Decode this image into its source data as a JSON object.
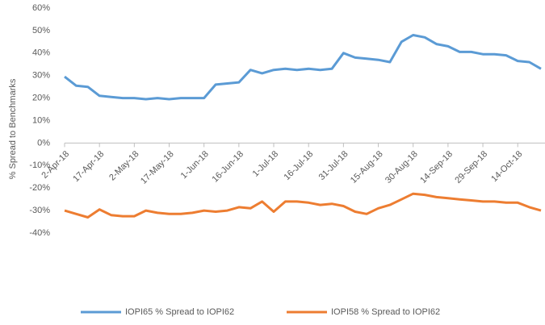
{
  "chart_data": {
    "type": "line",
    "y_label": "% Spread to Benchmarks",
    "categories": [
      "2-Apr-18",
      null,
      null,
      "17-Apr-18",
      null,
      null,
      "2-May-18",
      null,
      null,
      "17-May-18",
      null,
      null,
      "1-Jun-18",
      null,
      null,
      "16-Jun-18",
      null,
      null,
      "1-Jul-18",
      null,
      null,
      "16-Jul-18",
      null,
      null,
      "31-Jul-18",
      null,
      null,
      "15-Aug-18",
      null,
      null,
      "30-Aug-18",
      null,
      null,
      "14-Sep-18",
      null,
      null,
      "29-Sep-18",
      null,
      null,
      "14-Oct-18",
      null,
      null
    ],
    "series": [
      {
        "name": "IOPI65 % Spread to IOPI62",
        "color": "#5b9bd5",
        "values": [
          29.5,
          25.5,
          25,
          21,
          20.5,
          20,
          20,
          19.5,
          20,
          19.5,
          20,
          20,
          20,
          26,
          26.5,
          27,
          32.5,
          31,
          32.5,
          33,
          32.5,
          33,
          32.5,
          33,
          40,
          38,
          37.5,
          37,
          36,
          45,
          48,
          47,
          44,
          43,
          40.5,
          40.5,
          39.5,
          39.5,
          39,
          36.5,
          36,
          33
        ]
      },
      {
        "name": "IOPI58 % Spread to IOPI62",
        "color": "#ed7d31",
        "values": [
          -30,
          -31.5,
          -33,
          -29.5,
          -32,
          -32.5,
          -32.5,
          -30,
          -31,
          -31.5,
          -31.5,
          -31,
          -30,
          -30.5,
          -30,
          -28.5,
          -29,
          -26,
          -30.5,
          -26,
          -26,
          -26.5,
          -27.5,
          -27,
          -28,
          -30.5,
          -31.5,
          -29,
          -27.5,
          -25,
          -22.5,
          -23,
          -24,
          -24.5,
          -25,
          -25.5,
          -26,
          -26,
          -26.5,
          -26.5,
          -28.5,
          -30
        ]
      }
    ],
    "ylim": [
      -40,
      60
    ],
    "yticks": [
      {
        "value": -40,
        "label": "-40%"
      },
      {
        "value": -30,
        "label": "-30%"
      },
      {
        "value": -20,
        "label": "-20%"
      },
      {
        "value": -10,
        "label": "-10%"
      },
      {
        "value": 0,
        "label": "0%"
      },
      {
        "value": 10,
        "label": "10%"
      },
      {
        "value": 20,
        "label": "20%"
      },
      {
        "value": 30,
        "label": "30%"
      },
      {
        "value": 40,
        "label": "40%"
      },
      {
        "value": 50,
        "label": "50%"
      },
      {
        "value": 60,
        "label": "60%"
      }
    ],
    "legend": "bottom"
  }
}
